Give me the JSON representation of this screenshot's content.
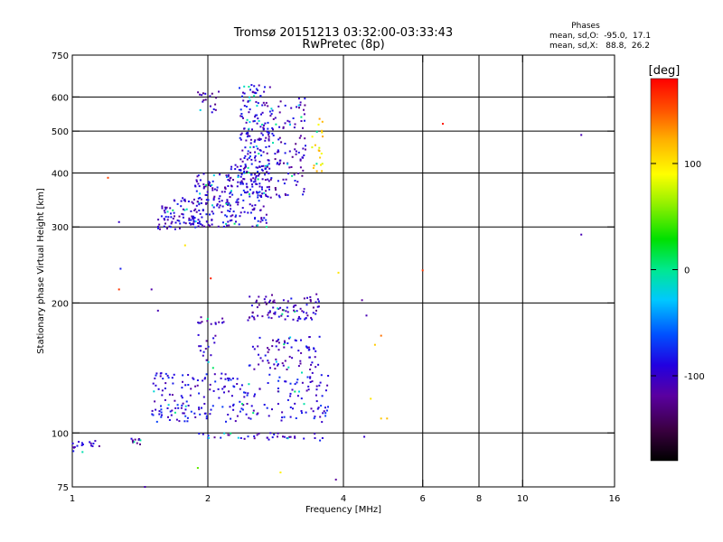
{
  "chart_data": {
    "type": "scatter",
    "title": "Tromsø 20151213 03:32:00-03:33:43",
    "subtitle": "RwPretec (8p)",
    "stats": {
      "heading": "Phases",
      "line1": "mean, sd,O:  -95.0,  17.1",
      "line2": "mean, sd,X:   88.8,  26.2"
    },
    "xlabel": "Frequency [MHz]",
    "ylabel": "Stationary phase Virtual Height [km]",
    "x_scale": "log2",
    "y_scale": "log",
    "xlim": [
      1,
      16
    ],
    "ylim": [
      75,
      750
    ],
    "x_ticks": [
      1,
      2,
      4,
      6,
      8,
      10,
      16
    ],
    "x_tick_labels": [
      "1",
      "2",
      "4",
      "6",
      "8",
      "10",
      "16"
    ],
    "y_ticks": [
      75,
      100,
      200,
      300,
      400,
      500,
      600,
      750
    ],
    "y_tick_labels": [
      "75",
      "100",
      "200",
      "300",
      "400",
      "500",
      "600",
      "750"
    ],
    "x_gridlines": [
      2,
      4,
      6,
      8,
      10
    ],
    "y_gridlines": [
      100,
      200,
      300,
      400,
      500,
      600
    ],
    "colorbar": {
      "label": "[deg]",
      "range": [
        -180,
        180
      ],
      "tick_values": [
        100,
        0,
        -100
      ],
      "tick_labels": [
        "100",
        "0",
        "-100"
      ]
    },
    "clusters": [
      {
        "f": [
          1.55,
          1.95
        ],
        "h": [
          295,
          350
        ],
        "phase": -100,
        "n": 90
      },
      {
        "f": [
          1.85,
          2.25
        ],
        "h": [
          300,
          400
        ],
        "phase": -100,
        "n": 110
      },
      {
        "f": [
          2.2,
          2.7
        ],
        "h": [
          300,
          420
        ],
        "phase": -95,
        "n": 110
      },
      {
        "f": [
          2.35,
          2.75
        ],
        "h": [
          350,
          640
        ],
        "phase": -95,
        "n": 190
      },
      {
        "f": [
          2.7,
          3.3
        ],
        "h": [
          350,
          600
        ],
        "phase": -105,
        "n": 120
      },
      {
        "f": [
          1.9,
          2.15
        ],
        "h": [
          550,
          620
        ],
        "phase": -110,
        "n": 18
      },
      {
        "f": [
          3.4,
          3.6
        ],
        "h": [
          400,
          560
        ],
        "phase": 100,
        "n": 22
      },
      {
        "f": [
          2.45,
          3.55
        ],
        "h": [
          182,
          210
        ],
        "phase": -105,
        "n": 90
      },
      {
        "f": [
          1.9,
          2.2
        ],
        "h": [
          178,
          186
        ],
        "phase": -105,
        "n": 14
      },
      {
        "f": [
          2.45,
          3.6
        ],
        "h": [
          140,
          168
        ],
        "phase": -100,
        "n": 75
      },
      {
        "f": [
          1.9,
          2.1
        ],
        "h": [
          140,
          170
        ],
        "phase": -100,
        "n": 16
      },
      {
        "f": [
          1.5,
          3.7
        ],
        "h": [
          118,
          138
        ],
        "phase": -95,
        "n": 130
      },
      {
        "f": [
          1.5,
          3.7
        ],
        "h": [
          106,
          117
        ],
        "phase": -90,
        "n": 110
      },
      {
        "f": [
          1.9,
          3.6
        ],
        "h": [
          96,
          100
        ],
        "phase": -100,
        "n": 40
      },
      {
        "f": [
          1.0,
          1.15
        ],
        "h": [
          90,
          96
        ],
        "phase": -100,
        "n": 18
      },
      {
        "f": [
          1.33,
          1.42
        ],
        "h": [
          94,
          97
        ],
        "phase": -105,
        "n": 12
      }
    ],
    "outliers": [
      {
        "f": 1.2,
        "h": 390,
        "phase": 155
      },
      {
        "f": 1.27,
        "h": 308,
        "phase": -100
      },
      {
        "f": 1.28,
        "h": 240,
        "phase": -80
      },
      {
        "f": 1.27,
        "h": 215,
        "phase": 160
      },
      {
        "f": 1.5,
        "h": 215,
        "phase": -115
      },
      {
        "f": 1.55,
        "h": 192,
        "phase": -110
      },
      {
        "f": 1.78,
        "h": 272,
        "phase": 100
      },
      {
        "f": 2.03,
        "h": 228,
        "phase": 170
      },
      {
        "f": 3.9,
        "h": 235,
        "phase": 100
      },
      {
        "f": 4.4,
        "h": 203,
        "phase": -120
      },
      {
        "f": 4.5,
        "h": 187,
        "phase": -110
      },
      {
        "f": 4.85,
        "h": 168,
        "phase": 140
      },
      {
        "f": 4.7,
        "h": 160,
        "phase": 110
      },
      {
        "f": 4.6,
        "h": 120,
        "phase": 100
      },
      {
        "f": 4.85,
        "h": 108,
        "phase": 110
      },
      {
        "f": 5.0,
        "h": 108,
        "phase": 115
      },
      {
        "f": 4.45,
        "h": 98,
        "phase": -100
      },
      {
        "f": 6.0,
        "h": 238,
        "phase": 160
      },
      {
        "f": 6.65,
        "h": 520,
        "phase": 170
      },
      {
        "f": 13.5,
        "h": 490,
        "phase": -110
      },
      {
        "f": 13.5,
        "h": 288,
        "phase": -110
      },
      {
        "f": 1.9,
        "h": 83,
        "phase": 50
      },
      {
        "f": 2.9,
        "h": 81,
        "phase": 95
      },
      {
        "f": 3.85,
        "h": 78,
        "phase": -120
      },
      {
        "f": 1.45,
        "h": 75,
        "phase": -110
      }
    ]
  }
}
